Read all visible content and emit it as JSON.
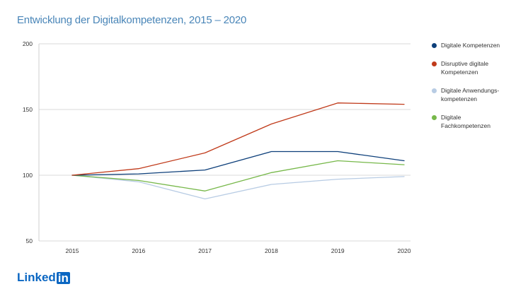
{
  "title": "Entwicklung der Digitalkompetenzen, 2015 – 2020",
  "logo": {
    "word": "Linked",
    "box": "in"
  },
  "chart_data": {
    "type": "line",
    "title": "Entwicklung der Digitalkompetenzen, 2015 – 2020",
    "x": [
      "2015",
      "2016",
      "2017",
      "2018",
      "2019",
      "2020"
    ],
    "ylim": [
      50,
      200
    ],
    "yticks": [
      50,
      100,
      150,
      200
    ],
    "grid": true,
    "legend_position": "right",
    "series": [
      {
        "name": "Digitale Kompetenzen",
        "color": "#0d3f7a",
        "values": [
          100,
          101,
          104,
          118,
          118,
          111
        ]
      },
      {
        "name": "Disruptive digitale\nKompetenzen",
        "color": "#c03a1a",
        "values": [
          100,
          105,
          117,
          139,
          155,
          154
        ]
      },
      {
        "name": "Digitale Anwendungs-\nkompetenzen",
        "color": "#b8cce4",
        "values": [
          100,
          95,
          82,
          93,
          97,
          99
        ]
      },
      {
        "name": "Digitale\nFachkompetenzen",
        "color": "#77b84a",
        "values": [
          100,
          96,
          88,
          102,
          111,
          108
        ]
      }
    ]
  }
}
